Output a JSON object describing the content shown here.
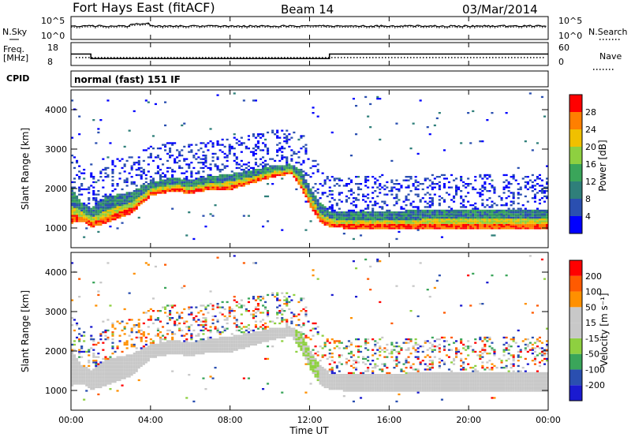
{
  "header": {
    "title": "Fort Hays East (fitACF)",
    "beam": "Beam 14",
    "date": "03/Mar/2014"
  },
  "strip_labels": {
    "n_sky": "N.Sky",
    "n_search": "N.Search",
    "freq": "Freq.",
    "freq_unit": "[MHz]",
    "nave": "Nave",
    "cpid": "CPID",
    "cpid_value": "normal (fast) 151 IF",
    "noise_ticks_left": [
      "10^5",
      "10^0"
    ],
    "noise_ticks_right": [
      "10^5",
      "10^0"
    ],
    "freq_ticks": [
      "18",
      "8"
    ],
    "nave_ticks": [
      "60",
      "0"
    ]
  },
  "colors": {
    "power": [
      "#0000ff",
      "#2a4fb0",
      "#2f7f7a",
      "#3aa55a",
      "#8ed040",
      "#f0c000",
      "#ff7f00",
      "#ff0000"
    ],
    "velocity": [
      "#1a1ad0",
      "#2a4fb0",
      "#3aa55a",
      "#8ed040",
      "#c8c8c8",
      "#c8c8c8",
      "#ff9000",
      "#ff5a00",
      "#ff0000"
    ],
    "ground_scatter": "#c8c8c8"
  },
  "chart_data": [
    {
      "type": "heatmap",
      "name": "power",
      "xlabel": "",
      "ylabel": "Slant Range [km]",
      "colorbar_label": "Power [dB]",
      "colorbar_ticks": [
        "28",
        "24",
        "20",
        "16",
        "12",
        "8",
        "4"
      ],
      "y_ticks": [
        "4000",
        "3000",
        "2000",
        "1000"
      ],
      "ylim": [
        500,
        4500
      ],
      "xlim_hours": [
        0,
        24
      ],
      "echo_band": {
        "time_hours": [
          0,
          0.5,
          1,
          1.5,
          2,
          3,
          4,
          5,
          6,
          7,
          8,
          9,
          10,
          11,
          11.5,
          12,
          12.5,
          13,
          14,
          16,
          18,
          20,
          22,
          24
        ],
        "lower_km": [
          1100,
          1150,
          1000,
          1050,
          1150,
          1350,
          1800,
          1900,
          1850,
          1950,
          1950,
          2100,
          2250,
          2350,
          2000,
          1500,
          1100,
          1000,
          950,
          950,
          950,
          950,
          950,
          950
        ],
        "upper_km": [
          2000,
          1600,
          1500,
          1700,
          1800,
          1900,
          2150,
          2250,
          2200,
          2300,
          2350,
          2450,
          2550,
          2600,
          2450,
          2000,
          1600,
          1400,
          1400,
          1400,
          1450,
          1450,
          1450,
          1450
        ]
      }
    },
    {
      "type": "heatmap",
      "name": "velocity",
      "xlabel": "Time UT",
      "ylabel": "Slant Range [km]",
      "colorbar_label": "Velocity [m s⁻¹]",
      "colorbar_ticks": [
        "200",
        "100",
        "50",
        "15",
        "-15",
        "-50",
        "-100",
        "-200"
      ],
      "y_ticks": [
        "4000",
        "3000",
        "2000",
        "1000"
      ],
      "x_ticks": [
        "00:00",
        "04:00",
        "08:00",
        "12:00",
        "16:00",
        "20:00",
        "00:00"
      ],
      "ylim": [
        500,
        4500
      ],
      "xlim_hours": [
        0,
        24
      ]
    },
    {
      "type": "line",
      "name": "frequency",
      "ylabel": "Freq. [MHz]",
      "ylim": [
        8,
        18
      ],
      "x": [
        0,
        1,
        1,
        13,
        13,
        24
      ],
      "values": [
        13,
        13,
        11,
        11,
        13,
        13
      ]
    }
  ]
}
